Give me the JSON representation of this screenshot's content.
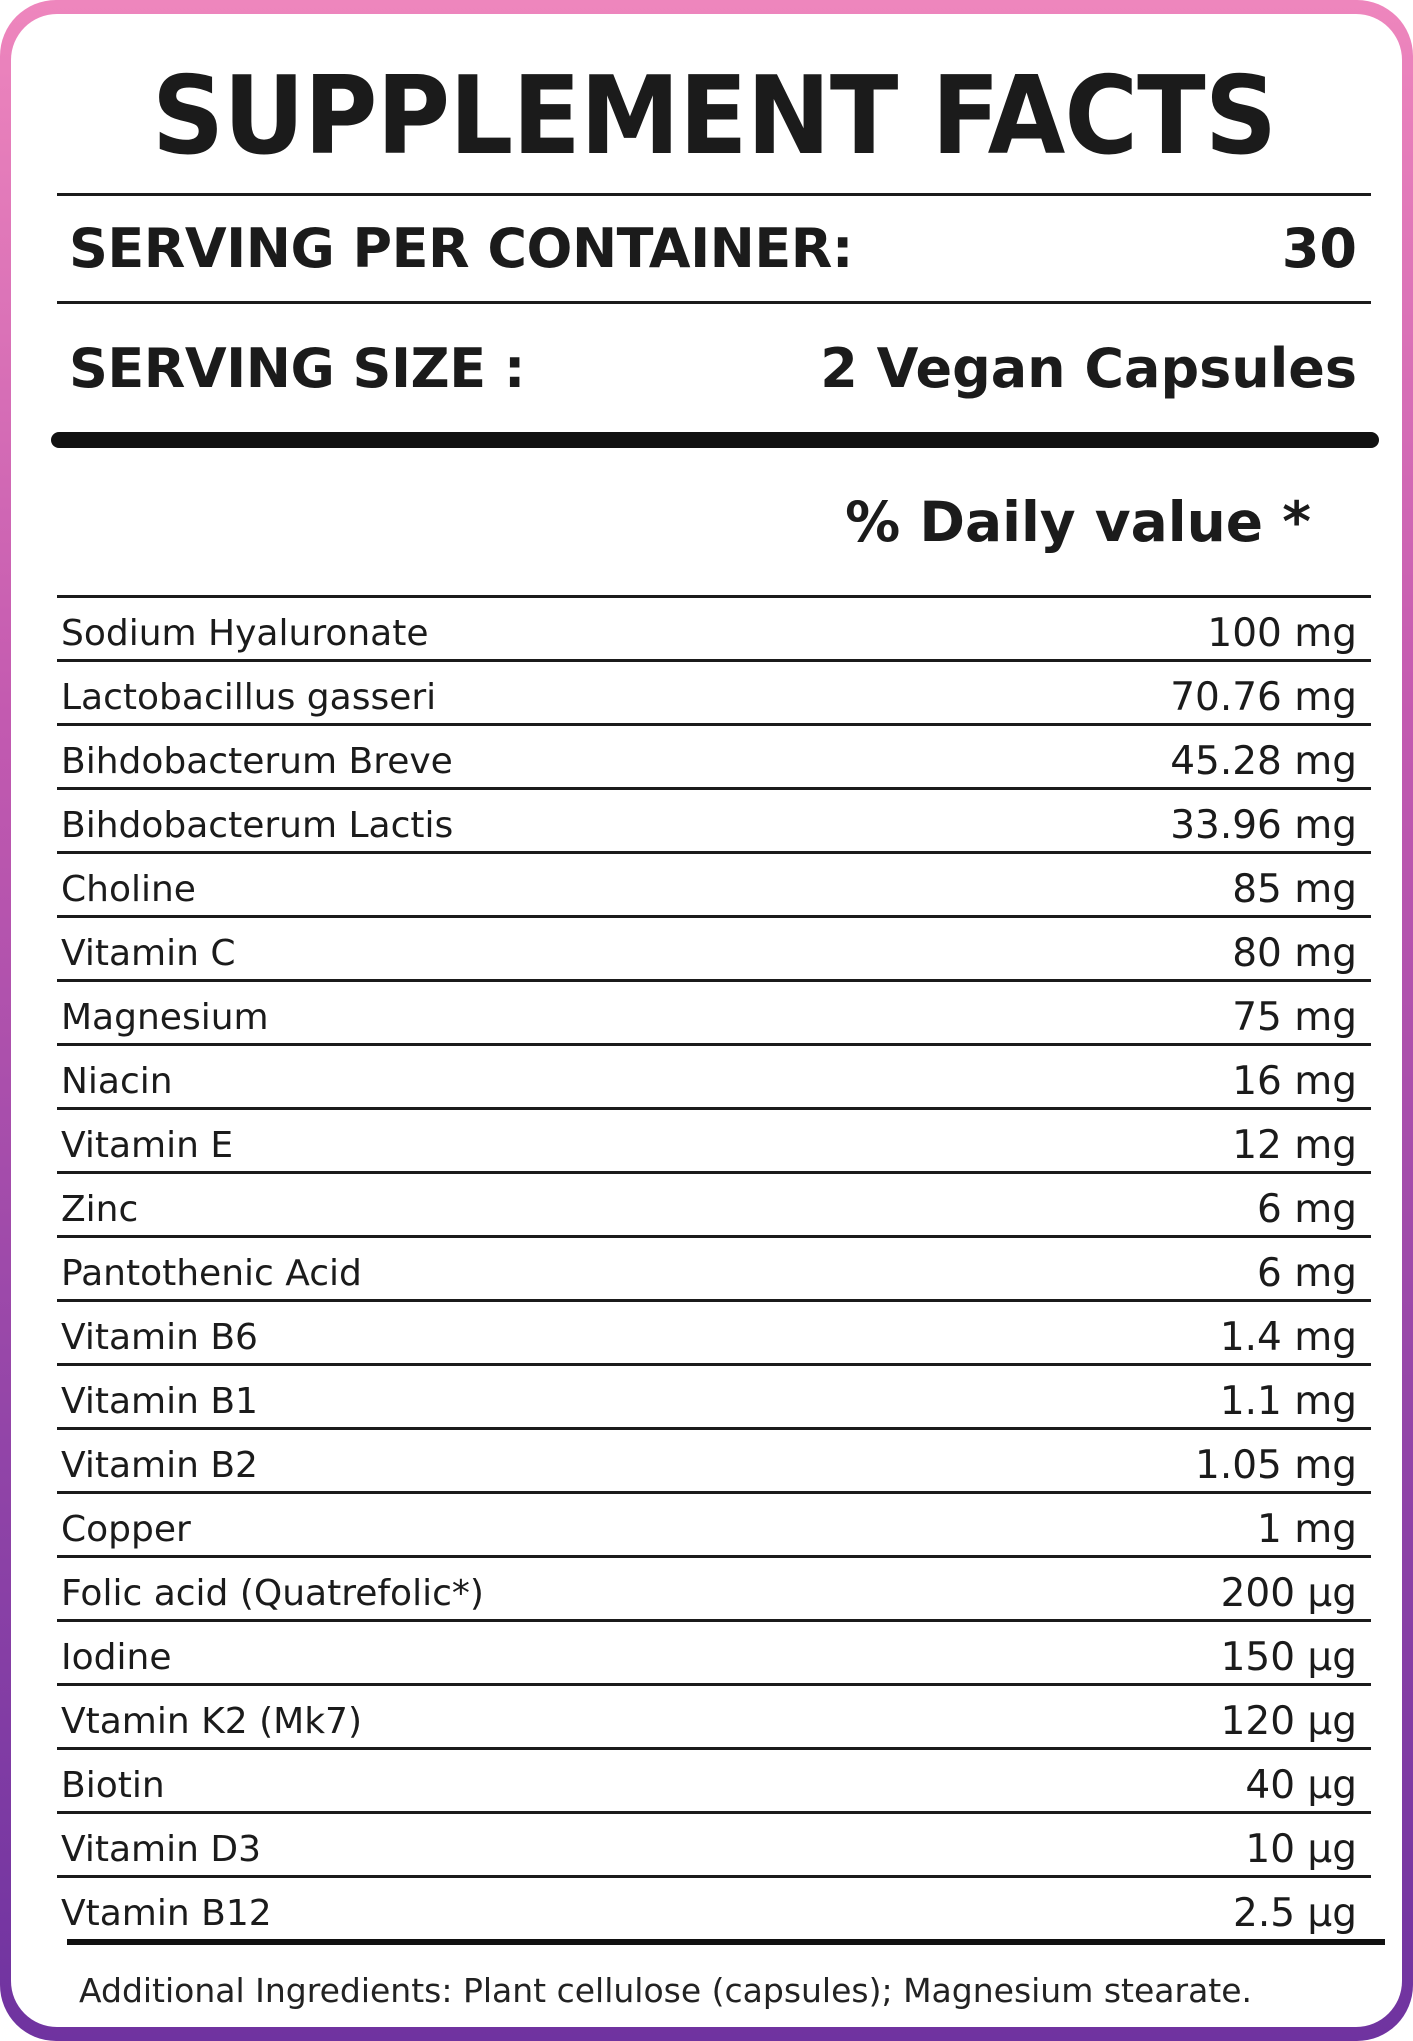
{
  "title": "SUPPLEMENT FACTS",
  "serving_per_container": {
    "label": "SERVING PER CONTAINER:",
    "value": "30"
  },
  "serving_size": {
    "label": "SERVING SIZE :",
    "value": "2 Vegan Capsules"
  },
  "daily_value_header": "% Daily value *",
  "nutrients": [
    {
      "name": "Sodium Hyaluronate",
      "amount": "100 mg"
    },
    {
      "name": "Lactobacillus gasseri",
      "amount": "70.76 mg"
    },
    {
      "name": "Bihdobacterum Breve",
      "amount": "45.28 mg"
    },
    {
      "name": "Bihdobacterum Lactis",
      "amount": "33.96 mg"
    },
    {
      "name": "Choline",
      "amount": "85 mg"
    },
    {
      "name": "Vitamin C",
      "amount": "80 mg"
    },
    {
      "name": "Magnesium",
      "amount": "75 mg"
    },
    {
      "name": "Niacin",
      "amount": "16 mg"
    },
    {
      "name": "Vitamin E",
      "amount": "12 mg"
    },
    {
      "name": "Zinc",
      "amount": "6 mg"
    },
    {
      "name": "Pantothenic Acid",
      "amount": "6 mg"
    },
    {
      "name": "Vitamin B6",
      "amount": "1.4 mg"
    },
    {
      "name": "Vitamin B1",
      "amount": "1.1 mg"
    },
    {
      "name": "Vitamin B2",
      "amount": "1.05 mg"
    },
    {
      "name": "Copper",
      "amount": "1 mg"
    },
    {
      "name": "Folic acid (Quatrefolic*)",
      "amount": "200 µg"
    },
    {
      "name": "Iodine",
      "amount": "150 µg"
    },
    {
      "name": "Vtamin K2 (Mk7)",
      "amount": "120 µg"
    },
    {
      "name": "Biotin",
      "amount": "40 µg"
    },
    {
      "name": "Vitamin D3",
      "amount": "10 µg"
    },
    {
      "name": "Vtamin B12",
      "amount": "2.5 µg"
    }
  ],
  "additional_ingredients": "Additional Ingredients: Plant cellulose (capsules); Magnesium stearate.",
  "colors": {
    "frame_top": "#ee86bd",
    "frame_bottom": "#6f33a0",
    "text": "#1b1b1b"
  }
}
